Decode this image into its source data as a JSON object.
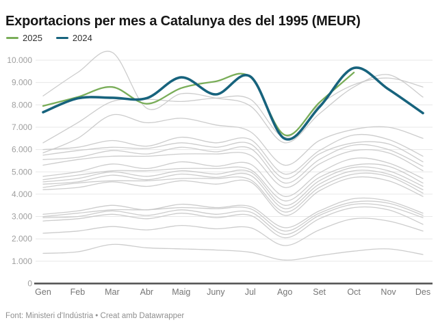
{
  "header": {
    "title": "Exportacions per mes a Catalunya des del 1995 (MEUR)"
  },
  "legend": {
    "items": [
      {
        "label": "2025",
        "color": "#79ad58"
      },
      {
        "label": "2024",
        "color": "#17637d"
      }
    ]
  },
  "footer": {
    "text": "Font: Ministeri d'Indústria • Creat amb Datawrapper"
  },
  "chart_data": {
    "type": "line",
    "title": "Exportacions per mes a Catalunya des del 1995 (MEUR)",
    "xlabel": "",
    "ylabel": "",
    "unit": "MEUR",
    "grid": "horizontal",
    "legend_position": "top-left",
    "categories": [
      "Gen",
      "Feb",
      "Mar",
      "Abr",
      "Maig",
      "Juny",
      "Jul",
      "Ago",
      "Set",
      "Oct",
      "Nov",
      "Des"
    ],
    "ylim": [
      0,
      10000
    ],
    "yticks": [
      0,
      1000,
      2000,
      3000,
      4000,
      5000,
      6000,
      7000,
      8000,
      9000,
      10000
    ],
    "ytick_labels": [
      "0",
      "1.000",
      "2.000",
      "3.000",
      "4.000",
      "5.000",
      "6.000",
      "7.000",
      "8.000",
      "9.000",
      "10.000"
    ],
    "series": [
      {
        "name": "2025",
        "color": "#79ad58",
        "width": 2.3,
        "values": [
          7950,
          8350,
          8800,
          8050,
          8750,
          9050,
          9250,
          6650,
          8100,
          9450
        ]
      },
      {
        "name": "2024",
        "color": "#17637d",
        "width": 3.6,
        "values": [
          7670,
          8290,
          8320,
          8300,
          9230,
          8470,
          9270,
          6480,
          7900,
          9650,
          8700,
          7630
        ]
      }
    ],
    "background_series": {
      "description": "anys anteriors 1995–2023 (sense etiqueta individual)",
      "color": "#c7c7c7",
      "width": 1.3,
      "lines": [
        [
          8400,
          9450,
          10350,
          7850,
          8500,
          8300,
          7950,
          6300,
          7600,
          8800,
          9350,
          8350
        ],
        [
          6300,
          7200,
          8150,
          8250,
          8150,
          8300,
          8250,
          6550,
          8000,
          8900,
          9200,
          8800
        ],
        [
          5850,
          6500,
          7550,
          7200,
          7400,
          7100,
          6800,
          5300,
          6400,
          6900,
          7000,
          6500
        ],
        [
          6000,
          6100,
          6400,
          6150,
          6550,
          6300,
          6450,
          4900,
          5950,
          6650,
          6450,
          5700
        ],
        [
          5750,
          5950,
          6100,
          6050,
          6300,
          6100,
          6250,
          4700,
          5800,
          6300,
          6250,
          5450
        ],
        [
          5550,
          5650,
          5950,
          5800,
          6100,
          5900,
          6050,
          4500,
          5550,
          6200,
          6000,
          5250
        ],
        [
          5300,
          5550,
          5700,
          5700,
          5800,
          5800,
          5750,
          4300,
          5350,
          5950,
          5850,
          5050
        ],
        [
          4800,
          5000,
          5350,
          5150,
          5450,
          5250,
          5350,
          3900,
          4950,
          5600,
          5400,
          4700
        ],
        [
          4650,
          4850,
          5050,
          5050,
          5150,
          5150,
          5100,
          3700,
          4750,
          5300,
          5250,
          4500
        ],
        [
          4550,
          4700,
          5000,
          4800,
          5050,
          4900,
          5000,
          3500,
          4600,
          5200,
          5050,
          4350
        ],
        [
          4450,
          4550,
          4850,
          4650,
          4900,
          4750,
          4850,
          3350,
          4450,
          5050,
          4900,
          4200
        ],
        [
          4300,
          4500,
          4600,
          4600,
          4700,
          4700,
          4650,
          3200,
          4300,
          4900,
          4800,
          4050
        ],
        [
          4200,
          4300,
          4550,
          4350,
          4600,
          4450,
          4550,
          3050,
          4150,
          4750,
          4600,
          3900
        ],
        [
          3100,
          3250,
          3500,
          3300,
          3550,
          3400,
          3450,
          2500,
          3250,
          3800,
          3700,
          3150
        ],
        [
          3000,
          3150,
          3300,
          3300,
          3400,
          3350,
          3350,
          2350,
          3150,
          3650,
          3600,
          3050
        ],
        [
          2950,
          3000,
          3250,
          3050,
          3300,
          3100,
          3200,
          2200,
          3050,
          3550,
          3450,
          2950
        ],
        [
          2800,
          2900,
          3100,
          2900,
          3150,
          2950,
          3050,
          2050,
          2900,
          3400,
          3300,
          2650
        ],
        [
          2250,
          2350,
          2550,
          2400,
          2600,
          2450,
          2500,
          1700,
          2400,
          2900,
          2800,
          2350
        ],
        [
          1350,
          1420,
          1750,
          1600,
          1550,
          1500,
          1400,
          1050,
          1250,
          1450,
          1550,
          1300
        ]
      ]
    },
    "style": {
      "gridline_color": "#e7e7e7",
      "baseline_color": "#4e4e4e",
      "ytick_label_color": "#9e9e9e",
      "xtick_label_color": "#757575"
    }
  }
}
